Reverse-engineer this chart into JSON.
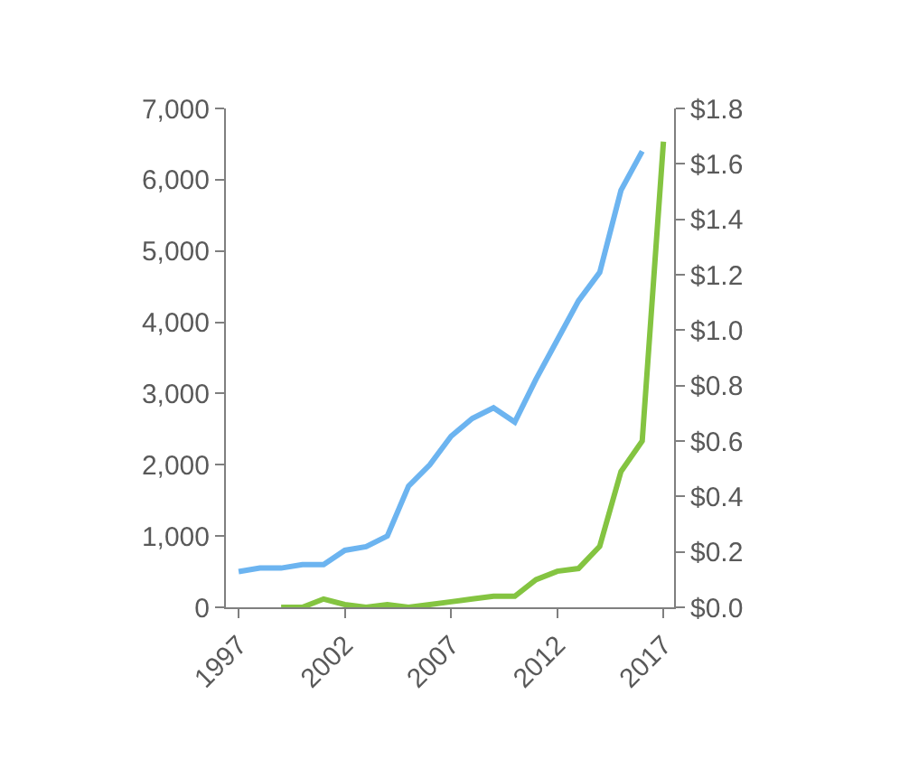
{
  "chart_data": {
    "type": "line",
    "x": [
      1997,
      1998,
      1999,
      2000,
      2001,
      2002,
      2003,
      2004,
      2005,
      2006,
      2007,
      2008,
      2009,
      2010,
      2011,
      2012,
      2013,
      2014,
      2015,
      2016,
      2017
    ],
    "series": [
      {
        "color": "#6cb4f0",
        "values": [
          500,
          550,
          550,
          600,
          600,
          800,
          850,
          1000,
          1700,
          2000,
          2400,
          2650,
          2800,
          2600,
          3200,
          3750,
          4300,
          4700,
          5850,
          6400,
          null
        ]
      },
      {
        "color": "#84c441",
        "axis": "y2",
        "values": [
          null,
          null,
          0,
          0,
          0.03,
          0.01,
          0,
          0.01,
          0,
          0.01,
          0.02,
          0.03,
          0.04,
          0.04,
          0.1,
          0.13,
          0.14,
          0.22,
          0.49,
          0.6,
          1.68
        ]
      }
    ],
    "xlim": [
      1996.4,
      2017.5
    ],
    "xticks": [
      1997,
      2002,
      2007,
      2012,
      2017
    ],
    "ylim": [
      0,
      7000
    ],
    "yticks": [
      {
        "value": 0,
        "label": "0"
      },
      {
        "value": 1000,
        "label": "1,000"
      },
      {
        "value": 2000,
        "label": "2,000"
      },
      {
        "value": 3000,
        "label": "3,000"
      },
      {
        "value": 4000,
        "label": "4,000"
      },
      {
        "value": 5000,
        "label": "5,000"
      },
      {
        "value": 6000,
        "label": "6,000"
      },
      {
        "value": 7000,
        "label": "7,000"
      }
    ],
    "y2lim": [
      0,
      1.8
    ],
    "y2ticks": [
      {
        "value": 0,
        "label": "$0.0"
      },
      {
        "value": 0.2,
        "label": "$0.2"
      },
      {
        "value": 0.4,
        "label": "$0.4"
      },
      {
        "value": 0.6,
        "label": "$0.6"
      },
      {
        "value": 0.8,
        "label": "$0.8"
      },
      {
        "value": 1.0,
        "label": "$1.0"
      },
      {
        "value": 1.2,
        "label": "$1.2"
      },
      {
        "value": 1.4,
        "label": "$1.4"
      },
      {
        "value": 1.6,
        "label": "$1.6"
      },
      {
        "value": 1.8,
        "label": "$1.8"
      }
    ],
    "marker": "none",
    "line_style": "solid"
  }
}
